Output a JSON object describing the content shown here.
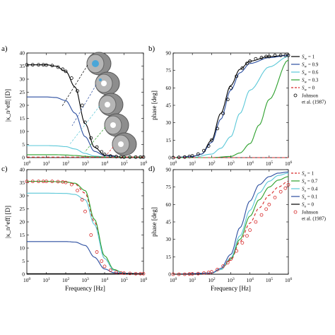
{
  "chart_data": [
    {
      "panel": "a)",
      "type": "line",
      "xscale": "log",
      "xlim": [
        1,
        1000000
      ],
      "ylim": [
        0,
        40
      ],
      "xticks": [
        "10^0",
        "10^1",
        "10^2",
        "10^3",
        "10^4",
        "10^5",
        "10^6"
      ],
      "yticks": [
        0,
        5,
        10,
        15,
        20,
        25,
        30,
        35,
        40
      ],
      "ylabel": "|κ_n^eff| [D]",
      "xlabel": "",
      "series": [
        {
          "x": [
            1,
            10,
            30,
            100,
            300,
            1000,
            3000,
            10000,
            100000,
            1000000
          ],
          "values": [
            35.5,
            35.5,
            35.0,
            33.0,
            27.0,
            13.0,
            4.0,
            1.0,
            0.2,
            0.2
          ],
          "color": "#000000"
        },
        {
          "x": [
            1,
            10,
            30,
            100,
            300,
            1000,
            3000,
            10000,
            100000,
            1000000
          ],
          "values": [
            23.2,
            23.2,
            23.0,
            21.8,
            17.0,
            8.0,
            2.4,
            0.8,
            0.2,
            0.2
          ],
          "color": "#2b4ea0"
        },
        {
          "x": [
            1,
            10,
            30,
            100,
            300,
            1000,
            3000,
            10000,
            100000,
            1000000
          ],
          "values": [
            4.6,
            4.6,
            4.5,
            4.2,
            3.3,
            1.6,
            0.6,
            0.3,
            0.2,
            0.2
          ],
          "color": "#5bc8d8"
        },
        {
          "x": [
            1,
            10,
            30,
            100,
            300,
            1000,
            3000,
            10000,
            100000,
            1000000
          ],
          "values": [
            1.1,
            1.1,
            1.1,
            1.0,
            0.8,
            0.5,
            0.3,
            0.2,
            0.2,
            0.2
          ],
          "color": "#2ca02c"
        },
        {
          "x": [
            1,
            1000000
          ],
          "values": [
            0.2,
            0.2
          ],
          "color": "#d62728",
          "dashed": true
        }
      ],
      "markers": {
        "x": [
          1,
          2,
          4,
          7,
          10,
          20,
          40,
          70,
          100,
          200,
          400,
          700,
          1000,
          2000,
          4000,
          7000,
          10000,
          20000,
          40000,
          70000,
          100000,
          200000,
          400000,
          700000,
          1000000
        ],
        "values": [
          35.5,
          35.5,
          35.5,
          35.5,
          35.4,
          35.2,
          34.6,
          33.8,
          33.0,
          30.4,
          25.5,
          20.0,
          13.5,
          7.5,
          4.0,
          2.2,
          1.2,
          0.6,
          0.4,
          0.3,
          0.2,
          0.2,
          0.2,
          0.2,
          0.2
        ]
      }
    },
    {
      "panel": "b)",
      "type": "line",
      "xscale": "log",
      "xlim": [
        1,
        1000000
      ],
      "ylim": [
        0,
        90
      ],
      "xticks": [
        "10^0",
        "10^1",
        "10^2",
        "10^3",
        "10^4",
        "10^5",
        "10^6"
      ],
      "yticks": [
        0,
        15,
        30,
        45,
        60,
        75,
        90
      ],
      "ylabel": "phase [deg]",
      "xlabel": "",
      "legend": {
        "position": "right",
        "entries": [
          "S_w = 1",
          "S_w = 0.9",
          "S_w = 0.6",
          "S_w = 0.3",
          "S_w = 0",
          "Johnson",
          "et al. (1987)"
        ]
      },
      "series": [
        {
          "name": "S_w = 1",
          "x": [
            1,
            10,
            30,
            100,
            300,
            1000,
            3000,
            10000,
            100000,
            1000000
          ],
          "values": [
            0,
            1,
            3,
            15,
            38,
            62,
            76,
            83,
            87,
            88
          ],
          "color": "#000000"
        },
        {
          "name": "S_w = 0.9",
          "x": [
            1,
            10,
            30,
            100,
            300,
            1000,
            3000,
            10000,
            100000,
            1000000
          ],
          "values": [
            0,
            1,
            3,
            13,
            33,
            58,
            73,
            81,
            86,
            88
          ],
          "color": "#2b4ea0"
        },
        {
          "name": "S_w = 0.6",
          "x": [
            1,
            10,
            100,
            300,
            1000,
            3000,
            10000,
            100000,
            1000000
          ],
          "values": [
            0,
            0,
            3,
            8,
            18,
            38,
            58,
            78,
            87
          ],
          "color": "#5bc8d8"
        },
        {
          "name": "S_w = 0.3",
          "x": [
            1,
            100,
            1000,
            3000,
            10000,
            30000,
            100000,
            1000000
          ],
          "values": [
            0,
            0,
            1,
            4,
            12,
            28,
            50,
            84
          ],
          "color": "#2ca02c"
        },
        {
          "name": "S_w = 0",
          "x": [
            1,
            1000000
          ],
          "values": [
            0,
            0
          ],
          "color": "#d62728",
          "dashed": true
        }
      ],
      "markers": {
        "x": [
          1,
          2,
          4,
          7,
          10,
          20,
          40,
          70,
          100,
          200,
          400,
          700,
          1000,
          2000,
          4000,
          7000,
          10000,
          20000,
          40000,
          70000,
          100000,
          200000,
          400000,
          700000,
          1000000
        ],
        "values": [
          0,
          0.2,
          0.5,
          1,
          1.5,
          3,
          6,
          10,
          15,
          25,
          38,
          50,
          60,
          70,
          77,
          81,
          83,
          85,
          86,
          87,
          87,
          88,
          88,
          88,
          88
        ]
      }
    },
    {
      "panel": "c)",
      "type": "line",
      "xscale": "log",
      "xlim": [
        1,
        1000000
      ],
      "ylim": [
        0,
        40
      ],
      "xticks": [
        "10^0",
        "10^1",
        "10^2",
        "10^3",
        "10^4",
        "10^5",
        "10^6"
      ],
      "yticks": [
        0,
        5,
        10,
        15,
        20,
        25,
        30,
        35,
        40
      ],
      "ylabel": "|κ_n^eff| [D]",
      "xlabel": "Frequency [Hz]",
      "series": [
        {
          "x": [
            1,
            10,
            100,
            300,
            1000,
            3000,
            10000,
            30000,
            100000,
            1000000
          ],
          "values": [
            35.5,
            35.5,
            35.3,
            34.5,
            31.0,
            20.0,
            6.0,
            1.5,
            0.4,
            0.2
          ],
          "color": "#d62728",
          "dashed": true
        },
        {
          "x": [
            1,
            10,
            100,
            300,
            1000,
            3000,
            10000,
            30000,
            100000,
            1000000
          ],
          "values": [
            35.5,
            35.5,
            35.3,
            34.8,
            32.0,
            21.0,
            7.0,
            1.8,
            0.4,
            0.2
          ],
          "color": "#2ca02c"
        },
        {
          "x": [
            1,
            10,
            100,
            300,
            1000,
            3000,
            10000,
            30000,
            100000,
            1000000
          ],
          "values": [
            31.0,
            31.0,
            30.9,
            30.5,
            28.5,
            19.0,
            6.0,
            1.5,
            0.4,
            0.2
          ],
          "color": "#5bc8d8"
        },
        {
          "x": [
            1,
            10,
            100,
            300,
            1000,
            3000,
            10000,
            30000,
            100000,
            1000000
          ],
          "values": [
            12.5,
            12.5,
            12.5,
            12.3,
            11.0,
            6.5,
            2.0,
            0.6,
            0.3,
            0.2
          ],
          "color": "#2b4ea0"
        },
        {
          "x": [
            1,
            1000000
          ],
          "values": [
            0.2,
            0.2
          ],
          "color": "#000000"
        }
      ],
      "markers": {
        "x": [
          1,
          2,
          4,
          7,
          10,
          20,
          40,
          70,
          100,
          200,
          400,
          700,
          1000,
          2000,
          4000,
          7000,
          10000,
          20000,
          40000,
          70000,
          100000,
          200000,
          400000,
          700000,
          1000000
        ],
        "values": [
          35.5,
          35.5,
          35.5,
          35.5,
          35.5,
          35.5,
          35.4,
          35.3,
          35.1,
          34.3,
          32.0,
          28.5,
          24.0,
          15.0,
          8.5,
          5.0,
          3.0,
          1.5,
          0.8,
          0.5,
          0.4,
          0.3,
          0.2,
          0.2,
          0.2
        ]
      }
    },
    {
      "panel": "d)",
      "type": "line",
      "xscale": "log",
      "xlim": [
        1,
        1000000
      ],
      "ylim": [
        0,
        90
      ],
      "xticks": [
        "10^0",
        "10^1",
        "10^2",
        "10^3",
        "10^4",
        "10^5",
        "10^6"
      ],
      "yticks": [
        0,
        15,
        30,
        45,
        60,
        75,
        90
      ],
      "ylabel": "phase [deg]",
      "xlabel": "Frequency [Hz]",
      "legend": {
        "position": "right",
        "entries": [
          "S_o = 1",
          "S_o = 0.7",
          "S_o = 0.4",
          "S_o = 0.1",
          "S_o = 0",
          "Johnson",
          "et al. (1987)"
        ]
      },
      "series": [
        {
          "name": "S_o = 1",
          "x": [
            1,
            100,
            300,
            1000,
            3000,
            10000,
            30000,
            100000,
            300000,
            1000000
          ],
          "values": [
            0,
            1,
            4,
            12,
            28,
            44,
            57,
            68,
            75,
            80
          ],
          "color": "#d62728",
          "dashed": true
        },
        {
          "name": "S_o = 0.7",
          "x": [
            1,
            100,
            300,
            1000,
            3000,
            10000,
            30000,
            100000,
            300000,
            1000000
          ],
          "values": [
            0,
            1,
            4,
            13,
            30,
            50,
            64,
            75,
            81,
            84
          ],
          "color": "#2ca02c"
        },
        {
          "name": "S_o = 0.4",
          "x": [
            1,
            100,
            300,
            1000,
            3000,
            10000,
            30000,
            100000,
            300000,
            1000000
          ],
          "values": [
            0,
            1,
            4,
            14,
            33,
            55,
            70,
            80,
            85,
            87
          ],
          "color": "#5bc8d8"
        },
        {
          "name": "S_o = 0.1",
          "x": [
            1,
            100,
            300,
            1000,
            3000,
            10000,
            30000,
            100000,
            300000,
            1000000
          ],
          "values": [
            0,
            1,
            5,
            17,
            40,
            63,
            77,
            84,
            87,
            88
          ],
          "color": "#2b4ea0"
        },
        {
          "name": "S_o = 0",
          "x": [
            1,
            1000000
          ],
          "values": [
            0,
            0
          ],
          "color": "#000000"
        }
      ],
      "markers": {
        "x": [
          1,
          2,
          4,
          7,
          10,
          20,
          40,
          70,
          100,
          200,
          400,
          700,
          1000,
          2000,
          4000,
          7000,
          10000,
          20000,
          40000,
          70000,
          100000,
          200000,
          400000,
          700000,
          1000000
        ],
        "values": [
          0,
          0,
          0,
          0.2,
          0.3,
          0.5,
          1,
          1.5,
          2,
          4,
          7,
          10,
          13,
          20,
          27,
          33,
          38,
          45,
          51,
          56,
          60,
          66,
          71,
          74,
          77
        ]
      }
    }
  ],
  "sample_images": {
    "count": 5,
    "description_hidden": true
  }
}
